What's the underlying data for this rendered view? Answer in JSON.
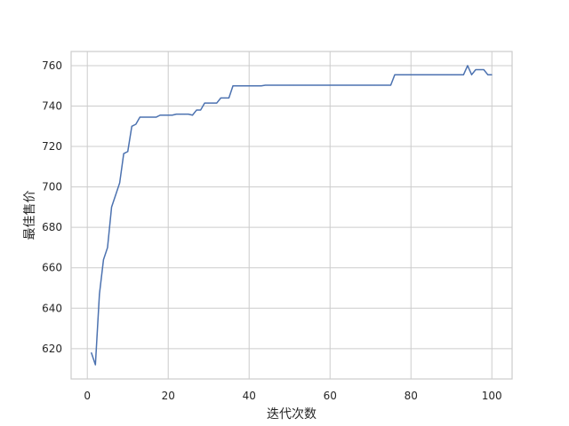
{
  "chart_data": {
    "type": "line",
    "title": "",
    "xlabel": "迭代次数",
    "ylabel": "最佳售价",
    "xlim": [
      -4.0,
      105.0
    ],
    "ylim": [
      605.0,
      767.0
    ],
    "xticks": [
      0,
      20,
      40,
      60,
      80,
      100
    ],
    "yticks": [
      620,
      640,
      660,
      680,
      700,
      720,
      740,
      760
    ],
    "grid": true,
    "colors": {
      "line": "#4c72b0",
      "grid": "#cccccc",
      "spine": "#cccccc",
      "background": "#ffffff"
    },
    "series": [
      {
        "x": [
          1,
          2,
          3,
          4,
          5,
          6,
          7,
          8,
          9,
          10,
          11,
          12,
          13,
          14,
          15,
          16,
          17,
          18,
          19,
          20,
          21,
          22,
          23,
          24,
          25,
          26,
          27,
          28,
          29,
          30,
          31,
          32,
          33,
          34,
          35,
          36,
          37,
          38,
          39,
          40,
          41,
          42,
          43,
          44,
          45,
          46,
          47,
          48,
          49,
          50,
          51,
          52,
          53,
          54,
          55,
          56,
          57,
          58,
          59,
          60,
          61,
          62,
          63,
          64,
          65,
          66,
          67,
          68,
          69,
          70,
          71,
          72,
          73,
          74,
          75,
          76,
          77,
          78,
          79,
          80,
          81,
          82,
          83,
          84,
          85,
          86,
          87,
          88,
          89,
          90,
          91,
          92,
          93,
          94,
          95,
          96,
          97,
          98,
          99,
          100
        ],
        "values": [
          618,
          612,
          647,
          664,
          670,
          690,
          696,
          702,
          716.5,
          717.5,
          730,
          731,
          734.5,
          734.5,
          734.5,
          734.5,
          734.5,
          735.5,
          735.5,
          735.5,
          735.5,
          736,
          736,
          736,
          736,
          735.5,
          738,
          738,
          741.5,
          741.5,
          741.5,
          741.5,
          744,
          744,
          744,
          750,
          750,
          750,
          750,
          750,
          750,
          750,
          750,
          750.3,
          750.3,
          750.3,
          750.3,
          750.3,
          750.3,
          750.3,
          750.3,
          750.3,
          750.3,
          750.3,
          750.3,
          750.3,
          750.3,
          750.3,
          750.3,
          750.3,
          750.3,
          750.3,
          750.3,
          750.3,
          750.3,
          750.3,
          750.3,
          750.3,
          750.3,
          750.3,
          750.3,
          750.3,
          750.3,
          750.3,
          750.3,
          755.5,
          755.5,
          755.5,
          755.5,
          755.5,
          755.5,
          755.5,
          755.5,
          755.5,
          755.5,
          755.5,
          755.5,
          755.5,
          755.5,
          755.5,
          755.5,
          755.5,
          755.5,
          760,
          755.5,
          758,
          758,
          758,
          755.5,
          755.5
        ]
      }
    ]
  }
}
